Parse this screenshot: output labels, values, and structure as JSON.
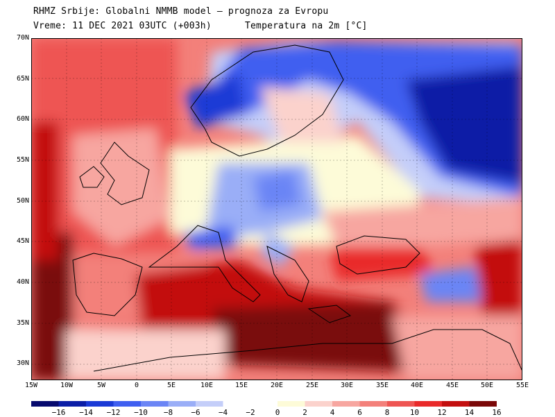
{
  "header": {
    "line1": "RHMZ Srbije: Globalni NMMB model — prognoza za Evropu",
    "line2": "Vreme: 11 DEC 2021 03UTC (+003h)",
    "variable": "Temperatura na 2m [°C]"
  },
  "axes": {
    "lat_labels": [
      "70N",
      "65N",
      "60N",
      "55N",
      "50N",
      "45N",
      "40N",
      "35N",
      "30N"
    ],
    "lon_labels": [
      "15W",
      "10W",
      "5W",
      "0",
      "5E",
      "10E",
      "15E",
      "20E",
      "25E",
      "30E",
      "35E",
      "40E",
      "45E",
      "50E",
      "55E"
    ]
  },
  "legend": {
    "colors_cold": [
      "#060a6e",
      "#0b1ea6",
      "#1a3ad6",
      "#3f5ff0",
      "#6b85f5",
      "#9aaef7",
      "#c4cef9"
    ],
    "colors_warm": [
      "#fdfbd8",
      "#fbd2cc",
      "#f7a6a0",
      "#f3807a",
      "#ee5552",
      "#e92a2a",
      "#c30f0f",
      "#7a0808"
    ],
    "labels_cold": [
      "−16",
      "−14",
      "−12",
      "−10",
      "−8",
      "−6",
      "−4",
      "−2"
    ],
    "labels_warm": [
      "0",
      "2",
      "4",
      "6",
      "8",
      "10",
      "12",
      "14",
      "16"
    ]
  }
}
